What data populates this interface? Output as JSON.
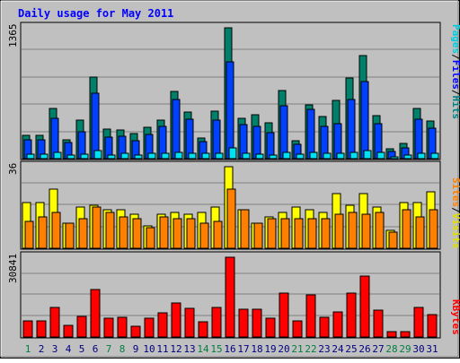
{
  "title": "Daily usage for May 2011",
  "colors": {
    "background": "#c0c0c0",
    "panel": "#c0c0c0",
    "title": "#0000ff",
    "pages": "#0080a0",
    "files": "#0000ff",
    "hits": "#008080",
    "sites": "#ff8000",
    "visits": "#ffff00",
    "kbytes": "#ff0000",
    "weekend_day": "#008040",
    "weekday": "#000080"
  },
  "chart_data": [
    {
      "type": "bar",
      "name": "pages-files-hits",
      "y_max_label": "1365",
      "ylim": [
        0,
        1365
      ],
      "legend": [
        "Pages",
        "/",
        "Files",
        "/",
        "Hits"
      ],
      "categories": [
        "1",
        "2",
        "3",
        "4",
        "5",
        "6",
        "7",
        "8",
        "9",
        "10",
        "11",
        "12",
        "13",
        "14",
        "15",
        "16",
        "17",
        "18",
        "19",
        "20",
        "21",
        "22",
        "23",
        "24",
        "25",
        "26",
        "27",
        "28",
        "29",
        "30",
        "31"
      ],
      "series": [
        {
          "name": "Hits",
          "values": [
            245,
            240,
            520,
            200,
            400,
            850,
            310,
            300,
            260,
            325,
            400,
            705,
            490,
            215,
            500,
            1365,
            420,
            460,
            375,
            710,
            185,
            560,
            435,
            610,
            840,
            1075,
            450,
            100,
            160,
            520,
            390
          ]
        },
        {
          "name": "Files",
          "values": [
            200,
            200,
            420,
            170,
            280,
            680,
            220,
            230,
            190,
            250,
            340,
            615,
            415,
            175,
            400,
            1010,
            355,
            340,
            270,
            555,
            150,
            510,
            340,
            360,
            615,
            800,
            360,
            75,
            115,
            415,
            320
          ]
        },
        {
          "name": "Pages",
          "values": [
            45,
            45,
            65,
            40,
            50,
            80,
            35,
            55,
            40,
            55,
            55,
            65,
            55,
            55,
            60,
            110,
            55,
            50,
            40,
            65,
            45,
            65,
            60,
            55,
            70,
            80,
            65,
            20,
            40,
            55,
            55
          ]
        }
      ]
    },
    {
      "type": "bar",
      "name": "sites-visits",
      "y_max_label": "36",
      "ylim": [
        0,
        36
      ],
      "legend": [
        "Sites",
        "/",
        "Visits"
      ],
      "categories": [
        "1",
        "2",
        "3",
        "4",
        "5",
        "6",
        "7",
        "8",
        "9",
        "10",
        "11",
        "12",
        "13",
        "14",
        "15",
        "16",
        "17",
        "18",
        "19",
        "20",
        "21",
        "22",
        "23",
        "24",
        "25",
        "26",
        "27",
        "28",
        "29",
        "30",
        "31"
      ],
      "series": [
        {
          "name": "Visits",
          "values": [
            20,
            20,
            26,
            11,
            18,
            19,
            17,
            17,
            15,
            10,
            15,
            16,
            15,
            16,
            18,
            36,
            17,
            11,
            14,
            16,
            18,
            17,
            16,
            24,
            19,
            24,
            18,
            8,
            20,
            20,
            25
          ]
        },
        {
          "name": "Sites",
          "values": [
            12,
            14,
            16,
            11,
            13,
            18,
            16,
            14,
            13,
            9,
            14,
            13,
            13,
            11,
            12,
            26,
            17,
            11,
            13,
            13,
            13,
            13,
            13,
            15,
            16,
            15,
            16,
            7,
            17,
            14,
            17
          ]
        }
      ]
    },
    {
      "type": "bar",
      "name": "kbytes",
      "y_max_label": "30841",
      "ylim": [
        0,
        30841
      ],
      "legend": [
        "KBytes"
      ],
      "categories": [
        "1",
        "2",
        "3",
        "4",
        "5",
        "6",
        "7",
        "8",
        "9",
        "10",
        "11",
        "12",
        "13",
        "14",
        "15",
        "16",
        "17",
        "18",
        "19",
        "20",
        "21",
        "22",
        "23",
        "24",
        "25",
        "26",
        "27",
        "28",
        "29",
        "30",
        "31"
      ],
      "series": [
        {
          "name": "KBytes",
          "values": [
            6300,
            6300,
            11400,
            4600,
            8100,
            18500,
            7300,
            7700,
            4300,
            7300,
            9400,
            13300,
            11100,
            5800,
            11300,
            30841,
            10700,
            10600,
            7200,
            17000,
            6300,
            16400,
            7600,
            9800,
            17000,
            23400,
            10300,
            2200,
            2200,
            11300,
            8800
          ]
        }
      ]
    }
  ],
  "days": [
    {
      "label": "1",
      "weekend": true
    },
    {
      "label": "2",
      "weekend": false
    },
    {
      "label": "3",
      "weekend": false
    },
    {
      "label": "4",
      "weekend": false
    },
    {
      "label": "5",
      "weekend": false
    },
    {
      "label": "6",
      "weekend": false
    },
    {
      "label": "7",
      "weekend": true
    },
    {
      "label": "8",
      "weekend": true
    },
    {
      "label": "9",
      "weekend": false
    },
    {
      "label": "10",
      "weekend": false
    },
    {
      "label": "11",
      "weekend": false
    },
    {
      "label": "12",
      "weekend": false
    },
    {
      "label": "13",
      "weekend": false
    },
    {
      "label": "14",
      "weekend": true
    },
    {
      "label": "15",
      "weekend": true
    },
    {
      "label": "16",
      "weekend": false
    },
    {
      "label": "17",
      "weekend": false
    },
    {
      "label": "18",
      "weekend": false
    },
    {
      "label": "19",
      "weekend": false
    },
    {
      "label": "20",
      "weekend": false
    },
    {
      "label": "21",
      "weekend": true
    },
    {
      "label": "22",
      "weekend": true
    },
    {
      "label": "23",
      "weekend": false
    },
    {
      "label": "24",
      "weekend": false
    },
    {
      "label": "25",
      "weekend": false
    },
    {
      "label": "26",
      "weekend": false
    },
    {
      "label": "27",
      "weekend": false
    },
    {
      "label": "28",
      "weekend": true
    },
    {
      "label": "29",
      "weekend": true
    },
    {
      "label": "30",
      "weekend": false
    },
    {
      "label": "31",
      "weekend": false
    }
  ]
}
